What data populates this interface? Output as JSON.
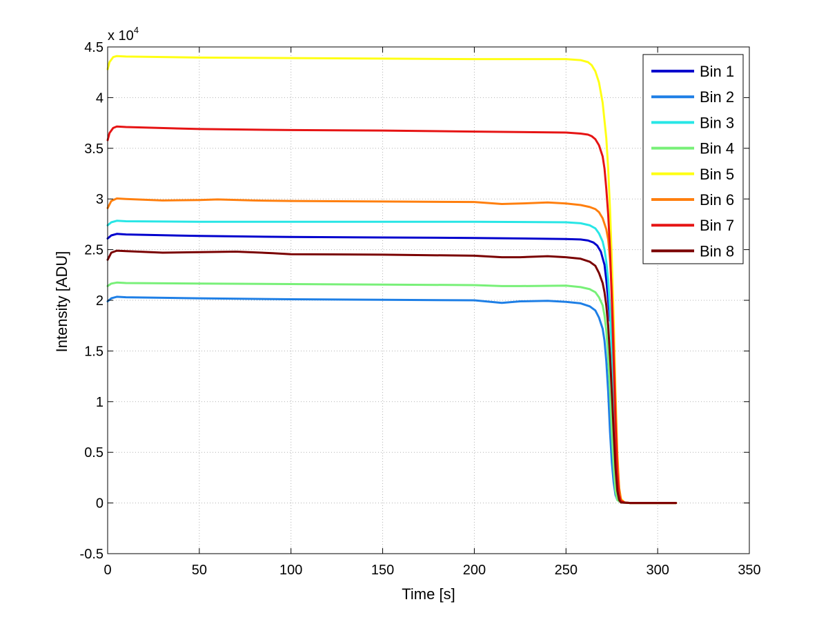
{
  "chart_data": {
    "type": "line",
    "title": "",
    "xlabel": "Time [s]",
    "ylabel": "Intensity [ADU]",
    "xlim": [
      0,
      350
    ],
    "ylim": [
      -0.5,
      4.5
    ],
    "y_multiplier_label": "x 10",
    "y_multiplier_exponent": "4",
    "xticks": [
      0,
      50,
      100,
      150,
      200,
      250,
      300,
      350
    ],
    "yticks": [
      -0.5,
      0,
      0.5,
      1,
      1.5,
      2,
      2.5,
      3,
      3.5,
      4,
      4.5
    ],
    "grid": true,
    "legend_position": "top-right",
    "series": [
      {
        "name": "Bin 1",
        "color": "#0000cd",
        "points": [
          [
            0,
            2.61
          ],
          [
            2,
            2.64
          ],
          [
            5,
            2.655
          ],
          [
            10,
            2.65
          ],
          [
            50,
            2.635
          ],
          [
            100,
            2.625
          ],
          [
            150,
            2.62
          ],
          [
            200,
            2.615
          ],
          [
            250,
            2.605
          ],
          [
            258,
            2.6
          ],
          [
            262,
            2.59
          ],
          [
            265,
            2.57
          ],
          [
            267,
            2.54
          ],
          [
            269,
            2.48
          ],
          [
            271,
            2.35
          ],
          [
            272,
            2.2
          ],
          [
            273,
            2.0
          ],
          [
            274,
            1.8
          ]
        ]
      },
      {
        "name": "Bin 2",
        "color": "#1e7fe6",
        "points": [
          [
            0,
            1.99
          ],
          [
            2,
            2.02
          ],
          [
            5,
            2.035
          ],
          [
            10,
            2.03
          ],
          [
            50,
            2.02
          ],
          [
            100,
            2.01
          ],
          [
            150,
            2.005
          ],
          [
            200,
            2.0
          ],
          [
            215,
            1.975
          ],
          [
            225,
            1.99
          ],
          [
            240,
            1.995
          ],
          [
            250,
            1.985
          ],
          [
            258,
            1.97
          ],
          [
            263,
            1.94
          ],
          [
            266,
            1.9
          ],
          [
            268,
            1.83
          ],
          [
            270,
            1.72
          ],
          [
            271,
            1.6
          ],
          [
            272,
            1.4
          ],
          [
            273,
            1.1
          ],
          [
            274,
            0.7
          ],
          [
            275,
            0.4
          ],
          [
            276,
            0.2
          ],
          [
            277,
            0.08
          ],
          [
            278,
            0.03
          ],
          [
            280,
            0.005
          ],
          [
            285,
            0.0
          ],
          [
            310,
            0.0
          ]
        ]
      },
      {
        "name": "Bin 3",
        "color": "#28e6e6",
        "points": [
          [
            0,
            2.74
          ],
          [
            2,
            2.77
          ],
          [
            5,
            2.785
          ],
          [
            10,
            2.78
          ],
          [
            50,
            2.775
          ],
          [
            100,
            2.775
          ],
          [
            150,
            2.775
          ],
          [
            200,
            2.775
          ],
          [
            250,
            2.77
          ],
          [
            258,
            2.76
          ],
          [
            263,
            2.74
          ],
          [
            266,
            2.71
          ],
          [
            268,
            2.66
          ],
          [
            270,
            2.58
          ],
          [
            271,
            2.5
          ],
          [
            272,
            2.38
          ],
          [
            273,
            2.2
          ],
          [
            274,
            1.9
          ],
          [
            275,
            1.5
          ],
          [
            276,
            1.0
          ],
          [
            277,
            0.5
          ],
          [
            278,
            0.2
          ],
          [
            279,
            0.06
          ],
          [
            280,
            0.01
          ],
          [
            285,
            0.0
          ],
          [
            310,
            0.0
          ]
        ]
      },
      {
        "name": "Bin 4",
        "color": "#78f078",
        "points": [
          [
            0,
            2.14
          ],
          [
            2,
            2.165
          ],
          [
            5,
            2.175
          ],
          [
            10,
            2.17
          ],
          [
            50,
            2.165
          ],
          [
            100,
            2.16
          ],
          [
            150,
            2.155
          ],
          [
            200,
            2.15
          ],
          [
            215,
            2.14
          ],
          [
            225,
            2.14
          ],
          [
            250,
            2.145
          ],
          [
            258,
            2.13
          ],
          [
            263,
            2.11
          ],
          [
            266,
            2.08
          ],
          [
            268,
            2.03
          ],
          [
            270,
            1.95
          ],
          [
            271,
            1.85
          ],
          [
            272,
            1.7
          ],
          [
            273,
            1.45
          ],
          [
            274,
            1.1
          ],
          [
            275,
            0.7
          ],
          [
            276,
            0.35
          ],
          [
            277,
            0.12
          ],
          [
            278,
            0.03
          ],
          [
            280,
            0.005
          ],
          [
            285,
            0.0
          ],
          [
            310,
            0.0
          ]
        ]
      },
      {
        "name": "Bin 5",
        "color": "#ffff14",
        "points": [
          [
            0,
            4.28
          ],
          [
            1,
            4.35
          ],
          [
            3,
            4.4
          ],
          [
            5,
            4.41
          ],
          [
            10,
            4.405
          ],
          [
            50,
            4.395
          ],
          [
            100,
            4.39
          ],
          [
            150,
            4.385
          ],
          [
            200,
            4.38
          ],
          [
            250,
            4.38
          ],
          [
            258,
            4.37
          ],
          [
            262,
            4.35
          ],
          [
            264,
            4.32
          ],
          [
            266,
            4.26
          ],
          [
            268,
            4.15
          ],
          [
            270,
            3.95
          ],
          [
            272,
            3.6
          ],
          [
            273,
            3.3
          ],
          [
            274,
            2.9
          ],
          [
            275,
            2.4
          ],
          [
            276,
            1.8
          ],
          [
            277,
            1.1
          ],
          [
            278,
            0.5
          ],
          [
            279,
            0.15
          ],
          [
            280,
            0.04
          ],
          [
            282,
            0.005
          ],
          [
            285,
            0.0
          ],
          [
            310,
            0.0
          ]
        ]
      },
      {
        "name": "Bin 6",
        "color": "#ff7f0e",
        "points": [
          [
            0,
            2.91
          ],
          [
            2,
            2.98
          ],
          [
            5,
            3.005
          ],
          [
            10,
            3.0
          ],
          [
            30,
            2.985
          ],
          [
            50,
            2.99
          ],
          [
            60,
            2.995
          ],
          [
            80,
            2.985
          ],
          [
            100,
            2.98
          ],
          [
            150,
            2.975
          ],
          [
            200,
            2.97
          ],
          [
            215,
            2.95
          ],
          [
            225,
            2.955
          ],
          [
            240,
            2.965
          ],
          [
            250,
            2.955
          ],
          [
            258,
            2.94
          ],
          [
            263,
            2.92
          ],
          [
            266,
            2.9
          ],
          [
            268,
            2.87
          ],
          [
            270,
            2.81
          ],
          [
            272,
            2.7
          ],
          [
            273,
            2.6
          ],
          [
            274,
            2.4
          ],
          [
            275,
            2.1
          ],
          [
            276,
            1.6
          ],
          [
            277,
            1.0
          ],
          [
            278,
            0.45
          ],
          [
            279,
            0.15
          ],
          [
            280,
            0.03
          ],
          [
            282,
            0.005
          ],
          [
            285,
            0.0
          ],
          [
            310,
            0.0
          ]
        ]
      },
      {
        "name": "Bin 7",
        "color": "#e61414",
        "points": [
          [
            0,
            3.58
          ],
          [
            1,
            3.65
          ],
          [
            3,
            3.7
          ],
          [
            5,
            3.715
          ],
          [
            10,
            3.71
          ],
          [
            50,
            3.69
          ],
          [
            100,
            3.68
          ],
          [
            150,
            3.675
          ],
          [
            200,
            3.665
          ],
          [
            250,
            3.655
          ],
          [
            258,
            3.645
          ],
          [
            262,
            3.635
          ],
          [
            264,
            3.62
          ],
          [
            266,
            3.59
          ],
          [
            268,
            3.53
          ],
          [
            270,
            3.42
          ],
          [
            271,
            3.3
          ],
          [
            272,
            3.1
          ],
          [
            273,
            2.85
          ],
          [
            274,
            2.5
          ],
          [
            275,
            2.0
          ],
          [
            276,
            1.4
          ],
          [
            277,
            0.8
          ],
          [
            278,
            0.3
          ],
          [
            279,
            0.08
          ],
          [
            280,
            0.02
          ],
          [
            282,
            0.005
          ],
          [
            285,
            0.0
          ],
          [
            310,
            0.0
          ]
        ]
      },
      {
        "name": "Bin 8",
        "color": "#7a0000",
        "points": [
          [
            0,
            2.4
          ],
          [
            2,
            2.47
          ],
          [
            5,
            2.49
          ],
          [
            10,
            2.485
          ],
          [
            30,
            2.47
          ],
          [
            50,
            2.475
          ],
          [
            70,
            2.48
          ],
          [
            90,
            2.465
          ],
          [
            100,
            2.455
          ],
          [
            150,
            2.45
          ],
          [
            200,
            2.44
          ],
          [
            215,
            2.425
          ],
          [
            225,
            2.425
          ],
          [
            240,
            2.435
          ],
          [
            250,
            2.425
          ],
          [
            258,
            2.41
          ],
          [
            263,
            2.38
          ],
          [
            266,
            2.34
          ],
          [
            268,
            2.27
          ],
          [
            270,
            2.17
          ],
          [
            271,
            2.08
          ],
          [
            272,
            1.95
          ],
          [
            273,
            1.75
          ],
          [
            274,
            1.45
          ],
          [
            275,
            1.1
          ],
          [
            276,
            0.7
          ],
          [
            277,
            0.35
          ],
          [
            278,
            0.12
          ],
          [
            279,
            0.03
          ],
          [
            280,
            0.005
          ],
          [
            285,
            0.0
          ],
          [
            310,
            0.0
          ]
        ]
      }
    ]
  }
}
